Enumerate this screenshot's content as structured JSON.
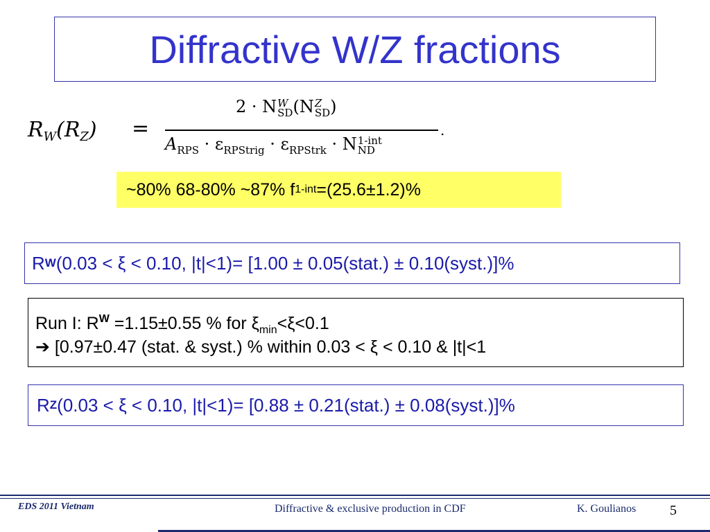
{
  "slide": {
    "title": "Diffractive W/Z fractions",
    "page_number": "5"
  },
  "formula": {
    "lhs_R": "R",
    "lhs_W": "W",
    "lhs_open": "(R",
    "lhs_Z": "Z",
    "lhs_close": ")",
    "equals": "=",
    "numer_prefix": "2 · N",
    "numer_sup_W": "W",
    "numer_sub_SD": "SD",
    "numer_open": "(N",
    "numer_sup_Z": "Z",
    "numer_sub_SD2": "SD",
    "numer_close": ")",
    "denom_A": "A",
    "denom_sub_RPS": "RPS",
    "denom_eps1": " · ε",
    "denom_sub_RPStrig": "RPStrig",
    "denom_eps2": " · ε",
    "denom_sub_RPStrk": "RPStrk",
    "denom_N": " · N",
    "denom_sup": "1-int",
    "denom_sub": "ND",
    "trailing_dot": "."
  },
  "highlight": {
    "text": "~80%  68-80%  ~87%  f",
    "sub": "1-int",
    "tail": " =(25.6±1.2)%"
  },
  "rw_box": {
    "R": "R",
    "sub": "W",
    "text": " (0.03 < ξ < 0.10, |t|<1)= [1.00 ± 0.05(stat.) ± 0.10(syst.)]%"
  },
  "run_box": {
    "line1_prefix": "Run I: R",
    "line1_sup": "W",
    "line1_mid": " =1.15±0.55 % for ξ",
    "line1_sub": "min",
    "line1_tail": "<ξ<0.1",
    "arrow": "➔",
    "line2": " [0.97±0.47 (stat. & syst.) % within 0.03 < ξ < 0.10 & |t|<1"
  },
  "rz_box": {
    "R": "R",
    "sub": "Z",
    "text": " (0.03 < ξ < 0.10, |t|<1)= [0.88 ± 0.21(stat.) ± 0.08(syst.)]%"
  },
  "footer": {
    "left": "EDS 2011 Vietnam",
    "center": "Diffractive & exclusive production in CDF",
    "right": "K. Goulianos"
  }
}
